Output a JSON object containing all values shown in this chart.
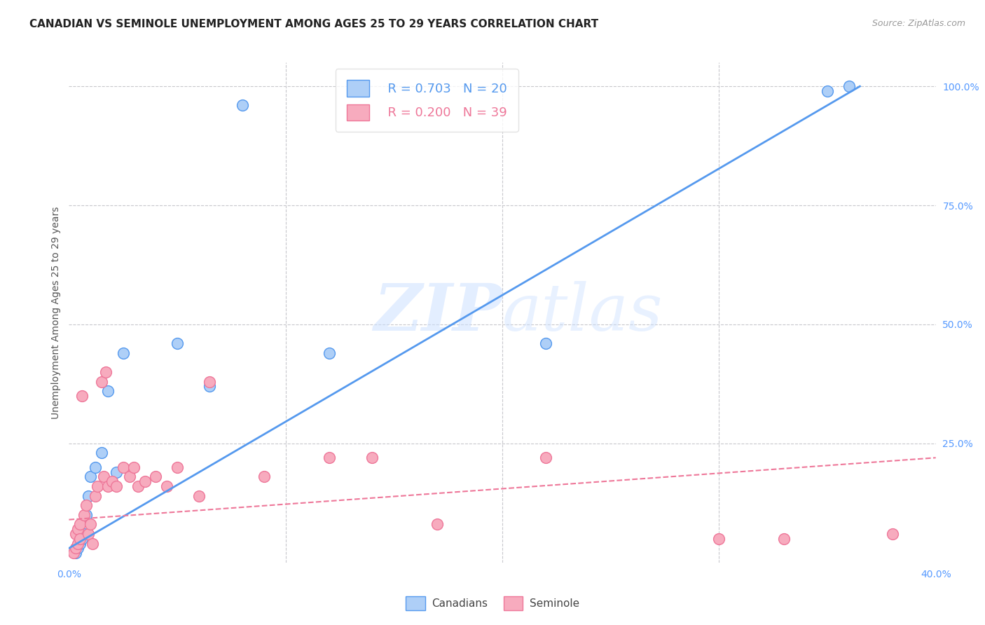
{
  "title": "CANADIAN VS SEMINOLE UNEMPLOYMENT AMONG AGES 25 TO 29 YEARS CORRELATION CHART",
  "source": "Source: ZipAtlas.com",
  "ylabel": "Unemployment Among Ages 25 to 29 years",
  "right_yticks": [
    0.0,
    0.25,
    0.5,
    0.75,
    1.0
  ],
  "right_yticklabels": [
    "",
    "25.0%",
    "50.0%",
    "75.0%",
    "100.0%"
  ],
  "watermark_zip": "ZIP",
  "watermark_atlas": "atlas",
  "legend_canadian_R": "R = 0.703",
  "legend_canadian_N": "N = 20",
  "legend_seminole_R": "R = 0.200",
  "legend_seminole_N": "N = 39",
  "canadian_color": "#aecff7",
  "seminole_color": "#f7abbe",
  "canadian_line_color": "#5599ee",
  "seminole_line_color": "#ee7799",
  "xmin": 0.0,
  "xmax": 0.4,
  "ymin": 0.0,
  "ymax": 1.05,
  "canadian_scatter_x": [
    0.003,
    0.004,
    0.005,
    0.006,
    0.007,
    0.008,
    0.009,
    0.01,
    0.012,
    0.015,
    0.018,
    0.022,
    0.025,
    0.05,
    0.065,
    0.08,
    0.12,
    0.22,
    0.35,
    0.36
  ],
  "canadian_scatter_y": [
    0.02,
    0.03,
    0.04,
    0.05,
    0.06,
    0.1,
    0.14,
    0.18,
    0.2,
    0.23,
    0.36,
    0.19,
    0.44,
    0.46,
    0.37,
    0.96,
    0.44,
    0.46,
    0.99,
    1.0
  ],
  "seminole_scatter_x": [
    0.002,
    0.003,
    0.003,
    0.004,
    0.004,
    0.005,
    0.005,
    0.006,
    0.007,
    0.008,
    0.009,
    0.01,
    0.011,
    0.012,
    0.013,
    0.015,
    0.016,
    0.017,
    0.018,
    0.02,
    0.022,
    0.025,
    0.028,
    0.03,
    0.032,
    0.035,
    0.04,
    0.045,
    0.05,
    0.06,
    0.065,
    0.09,
    0.12,
    0.14,
    0.17,
    0.22,
    0.3,
    0.33,
    0.38
  ],
  "seminole_scatter_y": [
    0.02,
    0.03,
    0.06,
    0.04,
    0.07,
    0.05,
    0.08,
    0.35,
    0.1,
    0.12,
    0.06,
    0.08,
    0.04,
    0.14,
    0.16,
    0.38,
    0.18,
    0.4,
    0.16,
    0.17,
    0.16,
    0.2,
    0.18,
    0.2,
    0.16,
    0.17,
    0.18,
    0.16,
    0.2,
    0.14,
    0.38,
    0.18,
    0.22,
    0.22,
    0.08,
    0.22,
    0.05,
    0.05,
    0.06
  ],
  "canadian_line_x": [
    0.0,
    0.365
  ],
  "canadian_line_y": [
    0.03,
    1.0
  ],
  "seminole_line_x": [
    0.0,
    0.4
  ],
  "seminole_line_y": [
    0.09,
    0.22
  ],
  "grid_color": "#c8c8cc",
  "background_color": "#ffffff",
  "title_fontsize": 11,
  "axis_label_fontsize": 10,
  "tick_fontsize": 10,
  "legend_fontsize": 13
}
